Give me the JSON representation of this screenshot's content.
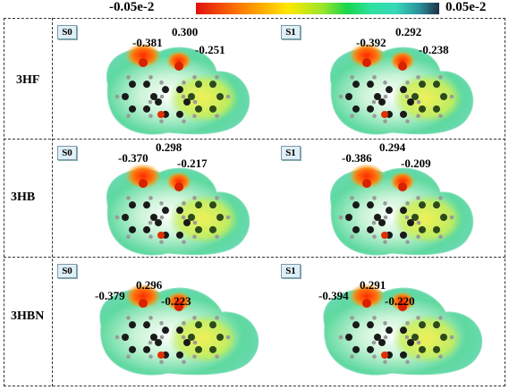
{
  "colorbar": {
    "min_label": "-0.05e-2",
    "max_label": "0.05e-2"
  },
  "rows": [
    {
      "label": "3HF",
      "panels": [
        {
          "state": "S0",
          "charges": [
            "-0.381",
            "0.300",
            "-0.251"
          ]
        },
        {
          "state": "S1",
          "charges": [
            "-0.392",
            "0.292",
            "-0.238"
          ]
        }
      ]
    },
    {
      "label": "3HB",
      "panels": [
        {
          "state": "S0",
          "charges": [
            "-0.370",
            "0.298",
            "-0.217"
          ]
        },
        {
          "state": "S1",
          "charges": [
            "-0.386",
            "0.294",
            "-0.209"
          ]
        }
      ]
    },
    {
      "label": "3HBN",
      "panels": [
        {
          "state": "S0",
          "charges": [
            "-0.379",
            "0.296",
            "-0.223"
          ]
        },
        {
          "state": "S1",
          "charges": [
            "-0.394",
            "0.291",
            "-0.220"
          ]
        }
      ]
    }
  ]
}
